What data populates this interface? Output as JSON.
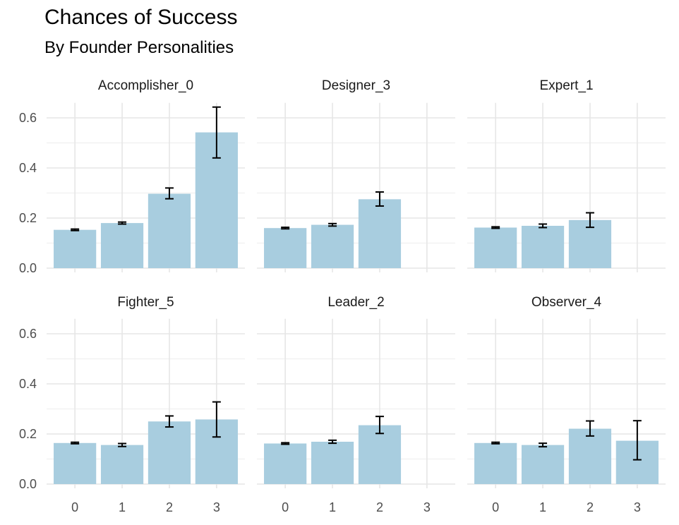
{
  "chart_data": {
    "type": "bar",
    "title": "Chances of Success",
    "subtitle": "By Founder Personalities",
    "xlabel": "",
    "ylabel": "",
    "categories": [
      "0",
      "1",
      "2",
      "3"
    ],
    "ylim": [
      0,
      0.66
    ],
    "y_ticks": [
      "0.0",
      "0.2",
      "0.4",
      "0.6"
    ],
    "grid": true,
    "bar_color": "#a8cddf",
    "error_bar_color": "#000000",
    "facets": [
      {
        "name": "Accomplisher_0",
        "values": [
          0.153,
          0.18,
          0.297,
          0.542
        ],
        "err_low": [
          0.15,
          0.176,
          0.277,
          0.44
        ],
        "err_high": [
          0.156,
          0.184,
          0.32,
          0.643
        ]
      },
      {
        "name": "Designer_3",
        "values": [
          0.16,
          0.173,
          0.275,
          null
        ],
        "err_low": [
          0.157,
          0.168,
          0.248,
          null
        ],
        "err_high": [
          0.163,
          0.178,
          0.304,
          null
        ]
      },
      {
        "name": "Expert_1",
        "values": [
          0.162,
          0.169,
          0.192,
          null
        ],
        "err_low": [
          0.159,
          0.162,
          0.163,
          null
        ],
        "err_high": [
          0.165,
          0.176,
          0.221,
          null
        ]
      },
      {
        "name": "Fighter_5",
        "values": [
          0.164,
          0.156,
          0.25,
          0.258
        ],
        "err_low": [
          0.161,
          0.15,
          0.228,
          0.188
        ],
        "err_high": [
          0.167,
          0.162,
          0.272,
          0.328
        ]
      },
      {
        "name": "Leader_2",
        "values": [
          0.162,
          0.169,
          0.235,
          null
        ],
        "err_low": [
          0.159,
          0.163,
          0.202,
          null
        ],
        "err_high": [
          0.165,
          0.175,
          0.27,
          null
        ]
      },
      {
        "name": "Observer_4",
        "values": [
          0.164,
          0.156,
          0.221,
          0.173
        ],
        "err_low": [
          0.161,
          0.149,
          0.192,
          0.097
        ],
        "err_high": [
          0.167,
          0.163,
          0.252,
          0.253
        ]
      }
    ]
  }
}
